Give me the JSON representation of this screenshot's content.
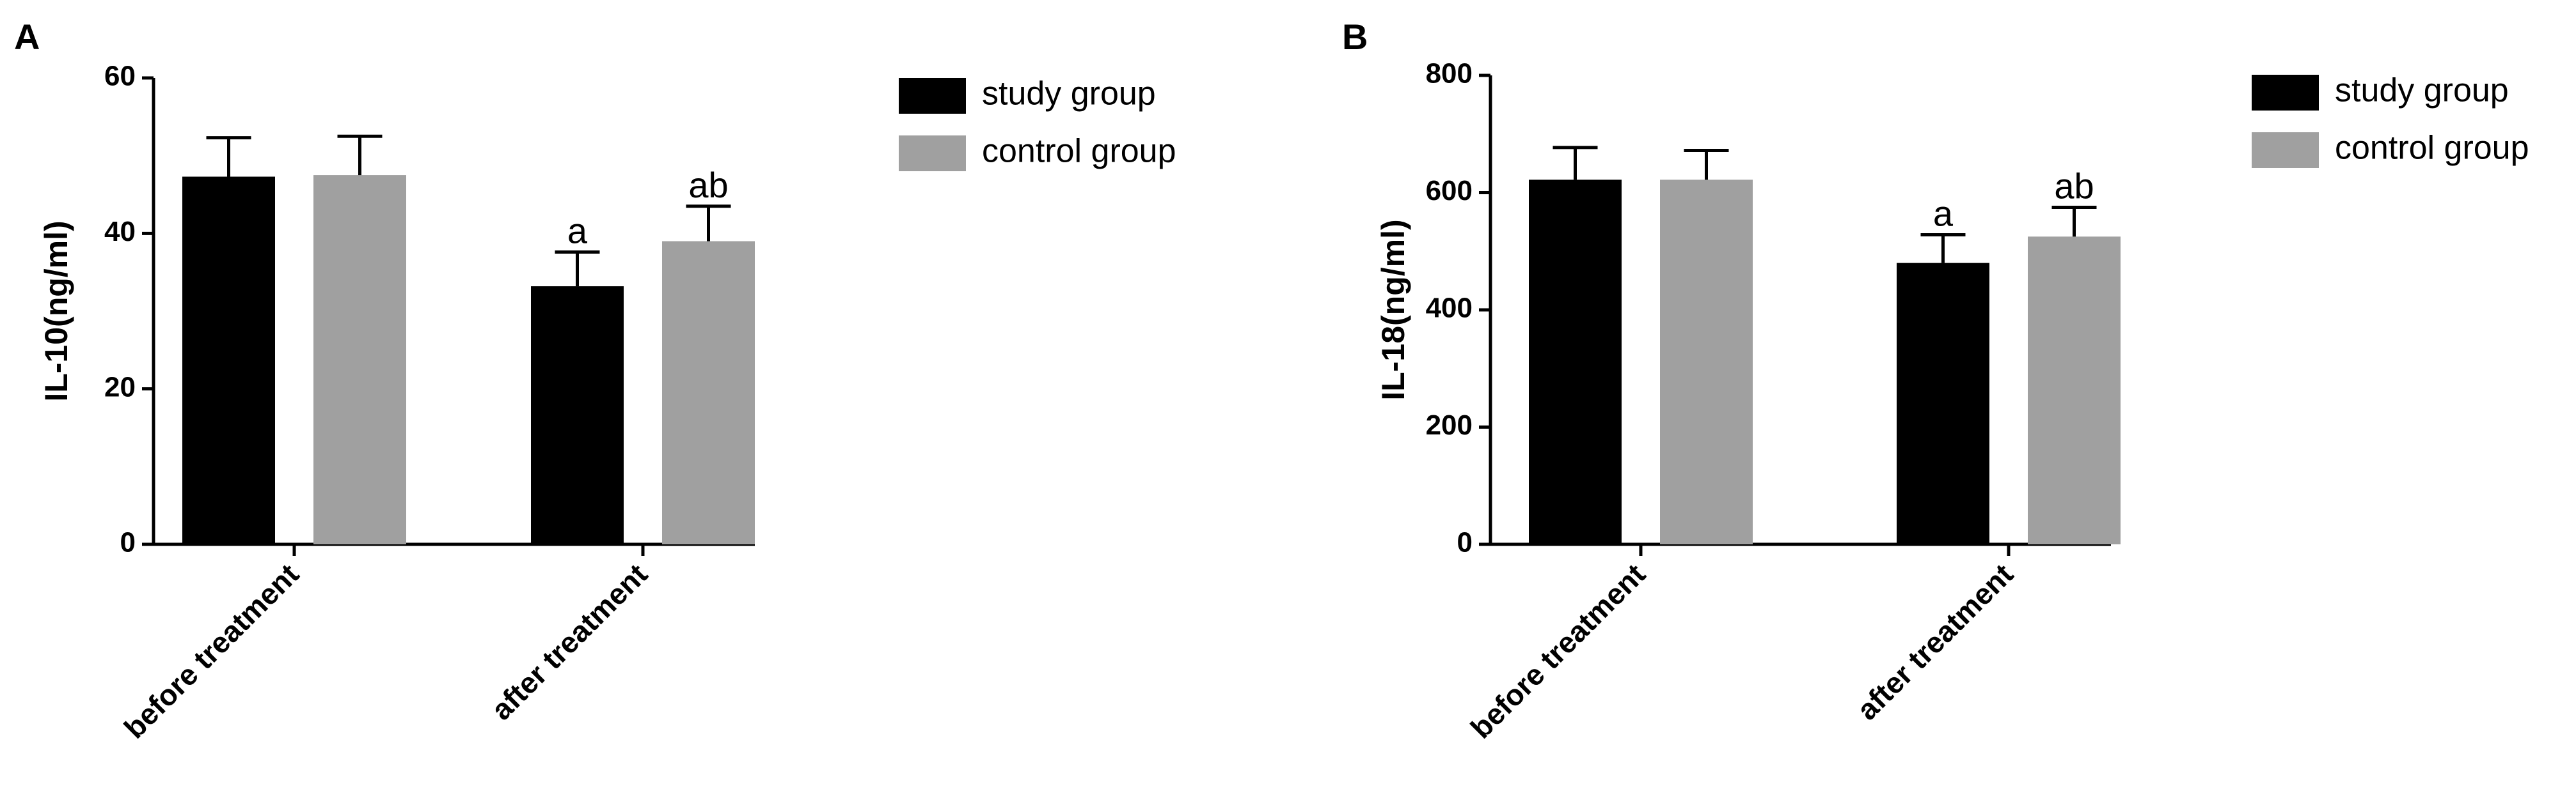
{
  "colors": {
    "study": "#000000",
    "control": "#a0a0a0"
  },
  "chart_data": [
    {
      "type": "bar",
      "panel": "A",
      "ylabel": "IL-10(ng/ml)",
      "ylim": [
        0,
        60
      ],
      "yticks": [
        "0",
        "20",
        "40",
        "60"
      ],
      "categories": [
        "before treatment",
        "after treatment"
      ],
      "series": [
        {
          "name": "study group",
          "values": [
            47.3,
            33.2
          ],
          "errors": [
            5.0,
            4.4
          ],
          "annotations": [
            "",
            "a"
          ]
        },
        {
          "name": "control group",
          "values": [
            47.5,
            39.0
          ],
          "errors": [
            5.0,
            4.5
          ],
          "annotations": [
            "",
            "ab"
          ]
        }
      ],
      "legend": "top-right"
    },
    {
      "type": "bar",
      "panel": "B",
      "ylabel": "IL-18(ng/ml)",
      "ylim": [
        0,
        800
      ],
      "yticks": [
        "0",
        "200",
        "400",
        "600",
        "800"
      ],
      "categories": [
        "before treatment",
        "after treatment"
      ],
      "series": [
        {
          "name": "study group",
          "values": [
            622,
            480
          ],
          "errors": [
            55,
            48
          ],
          "annotations": [
            "",
            "a"
          ]
        },
        {
          "name": "control group",
          "values": [
            622,
            525
          ],
          "errors": [
            50,
            50
          ],
          "annotations": [
            "",
            "ab"
          ]
        }
      ],
      "legend": "top-right"
    }
  ]
}
